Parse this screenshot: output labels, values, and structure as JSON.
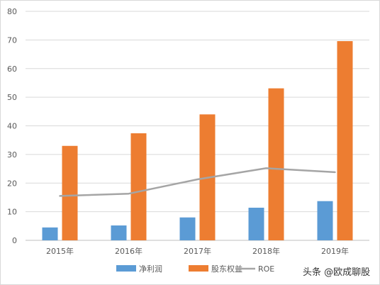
{
  "chart_data": {
    "type": "bar",
    "categories": [
      "2015年",
      "2016年",
      "2017年",
      "2018年",
      "2019年"
    ],
    "series": [
      {
        "name": "净利润",
        "kind": "bar",
        "color": "#5b9bd5",
        "values": [
          4.5,
          5.2,
          8.0,
          11.4,
          13.7
        ]
      },
      {
        "name": "股东权益",
        "kind": "bar",
        "color": "#ed7d31",
        "values": [
          33.0,
          37.4,
          44.0,
          53.1,
          69.6
        ]
      },
      {
        "name": "ROE",
        "kind": "line",
        "color": "#a5a5a5",
        "values": [
          15.5,
          16.3,
          21.3,
          25.2,
          23.8
        ]
      }
    ],
    "yticks": [
      "0",
      "10",
      "20",
      "30",
      "40",
      "50",
      "60",
      "70",
      "80"
    ],
    "ylim": [
      0,
      80
    ],
    "grid": true,
    "legend_position": "bottom"
  },
  "watermark": "头条 @欧成聊股"
}
